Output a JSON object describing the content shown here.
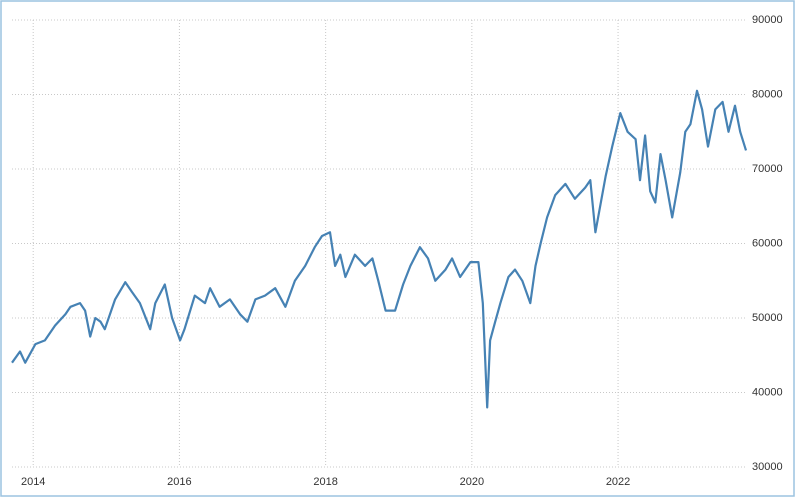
{
  "chart_data": {
    "type": "line",
    "x": [
      2013.71,
      2013.82,
      2013.89,
      2014.03,
      2014.16,
      2014.3,
      2014.44,
      2014.51,
      2014.64,
      2014.71,
      2014.78,
      2014.85,
      2014.92,
      2014.98,
      2015.12,
      2015.26,
      2015.35,
      2015.46,
      2015.6,
      2015.67,
      2015.8,
      2015.9,
      2016.01,
      2016.07,
      2016.21,
      2016.35,
      2016.42,
      2016.55,
      2016.69,
      2016.83,
      2016.93,
      2017.04,
      2017.17,
      2017.31,
      2017.45,
      2017.58,
      2017.72,
      2017.85,
      2017.95,
      2018.06,
      2018.13,
      2018.2,
      2018.27,
      2018.4,
      2018.54,
      2018.64,
      2018.72,
      2018.82,
      2018.95,
      2019.06,
      2019.16,
      2019.29,
      2019.4,
      2019.5,
      2019.64,
      2019.73,
      2019.84,
      2019.98,
      2020.09,
      2020.15,
      2020.21,
      2020.25,
      2020.32,
      2020.39,
      2020.5,
      2020.59,
      2020.69,
      2020.8,
      2020.87,
      2020.94,
      2021.03,
      2021.14,
      2021.28,
      2021.41,
      2021.55,
      2021.62,
      2021.69,
      2021.83,
      2021.92,
      2022.03,
      2022.13,
      2022.24,
      2022.3,
      2022.37,
      2022.44,
      2022.51,
      2022.58,
      2022.65,
      2022.74,
      2022.85,
      2022.92,
      2022.99,
      2023.08,
      2023.15,
      2023.23,
      2023.33,
      2023.43,
      2023.51,
      2023.6,
      2023.67,
      2023.75
    ],
    "series": [
      {
        "color": "#4682b4",
        "values": [
          44000,
          45500,
          44000,
          46500,
          47000,
          49000,
          50500,
          51500,
          52000,
          51000,
          47500,
          50000,
          49500,
          48500,
          52500,
          54800,
          53500,
          52000,
          48500,
          52000,
          54500,
          50000,
          47000,
          48500,
          53000,
          52000,
          54000,
          51500,
          52500,
          50500,
          49500,
          52500,
          53000,
          54000,
          51500,
          55000,
          57000,
          59500,
          61000,
          61500,
          57000,
          58500,
          55500,
          58500,
          57000,
          58000,
          55000,
          51000,
          51000,
          54500,
          57000,
          59500,
          58000,
          55000,
          56500,
          58000,
          55500,
          57500,
          57500,
          52000,
          38000,
          47000,
          49500,
          52000,
          55500,
          56500,
          55000,
          52000,
          57000,
          60000,
          63500,
          66500,
          68000,
          66000,
          67500,
          68500,
          61500,
          69000,
          73000,
          77500,
          75000,
          74000,
          68500,
          74500,
          67000,
          65500,
          72000,
          68500,
          63500,
          69500,
          75000,
          76000,
          80500,
          78000,
          73000,
          78000,
          79000,
          75000,
          78500,
          75000,
          72500
        ]
      }
    ],
    "xlim": [
      2013.71,
      2023.75
    ],
    "xticks": [
      2014,
      2016,
      2018,
      2020,
      2022
    ],
    "ylim": [
      30000,
      90000
    ],
    "yticks": [
      30000,
      40000,
      50000,
      60000,
      70000,
      80000,
      90000
    ],
    "grid": true
  }
}
